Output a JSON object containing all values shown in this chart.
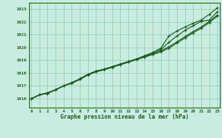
{
  "title": "Graphe pression niveau de la mer (hPa)",
  "xlabel_hours": [
    0,
    1,
    2,
    3,
    4,
    5,
    6,
    7,
    8,
    9,
    10,
    11,
    12,
    13,
    14,
    15,
    16,
    17,
    18,
    19,
    20,
    21,
    22,
    23
  ],
  "ylim": [
    1015.3,
    1023.5
  ],
  "xlim": [
    -0.3,
    23.3
  ],
  "yticks": [
    1016,
    1017,
    1018,
    1019,
    1020,
    1021,
    1022,
    1023
  ],
  "background_color": "#c8ece0",
  "grid_color": "#88c8a8",
  "line_color": "#1a5c1a",
  "line1": [
    1016.0,
    1016.3,
    1016.4,
    1016.7,
    1017.0,
    1017.2,
    1017.5,
    1017.85,
    1018.1,
    1018.25,
    1018.45,
    1018.65,
    1018.85,
    1019.05,
    1019.25,
    1019.45,
    1019.65,
    1019.95,
    1020.35,
    1020.75,
    1021.15,
    1021.5,
    1021.95,
    1022.45
  ],
  "line2": [
    1016.0,
    1016.3,
    1016.45,
    1016.7,
    1017.0,
    1017.25,
    1017.55,
    1017.9,
    1018.15,
    1018.3,
    1018.5,
    1018.7,
    1018.9,
    1019.1,
    1019.3,
    1019.5,
    1019.75,
    1020.05,
    1020.45,
    1020.85,
    1021.25,
    1021.6,
    1022.05,
    1022.55
  ],
  "line3": [
    1016.0,
    1016.3,
    1016.45,
    1016.7,
    1017.0,
    1017.25,
    1017.55,
    1017.9,
    1018.15,
    1018.3,
    1018.5,
    1018.7,
    1018.9,
    1019.1,
    1019.35,
    1019.6,
    1019.85,
    1020.4,
    1020.9,
    1021.35,
    1021.7,
    1022.05,
    1022.15,
    1022.8
  ],
  "line4": [
    1016.0,
    1016.3,
    1016.45,
    1016.7,
    1017.0,
    1017.25,
    1017.55,
    1017.9,
    1018.15,
    1018.3,
    1018.5,
    1018.7,
    1018.9,
    1019.1,
    1019.35,
    1019.6,
    1019.95,
    1020.9,
    1021.3,
    1021.6,
    1021.9,
    1022.15,
    1022.6,
    1023.1
  ]
}
